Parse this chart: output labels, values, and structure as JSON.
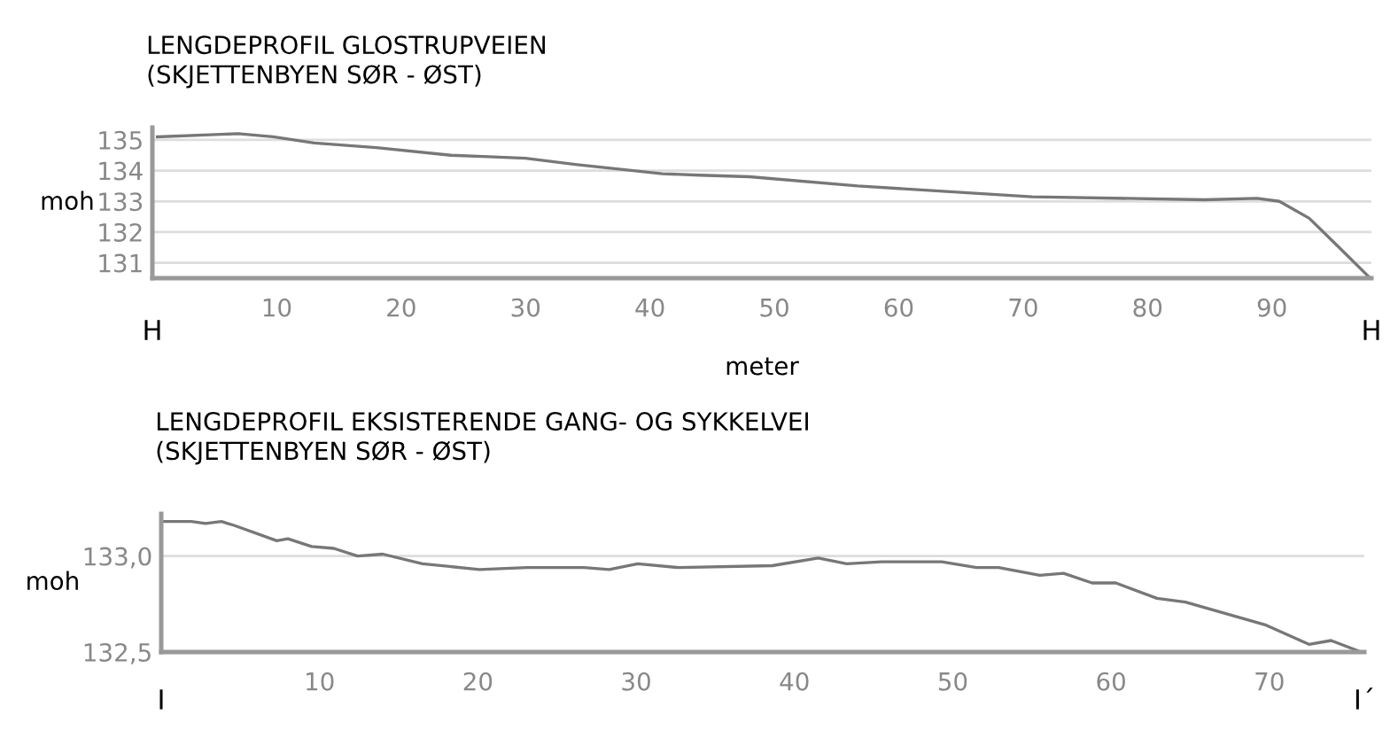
{
  "chart_data": [
    {
      "type": "line",
      "title": "LENGDEPROFIL GLOSTRUPVEIEN\n(SKJETTENBYEN SØR - ØST)",
      "xlabel": "meter",
      "ylabel": "moh",
      "annotations": [
        "H",
        "H"
      ],
      "xlim": [
        0,
        98
      ],
      "xticks": [
        10,
        20,
        30,
        40,
        50,
        60,
        70,
        80,
        90
      ],
      "ylim": [
        130.5,
        135.4
      ],
      "yticks": [
        131,
        132,
        133,
        134,
        135
      ],
      "grid": "y",
      "legend": false,
      "marker": "none",
      "line_style": "solid",
      "series": [
        {
          "color": "#777777",
          "x": [
            0.4,
            6.9,
            9.7,
            13,
            18,
            24,
            27,
            30,
            34,
            41,
            44,
            48,
            56.7,
            70.7,
            84.6,
            88.8,
            90.6,
            93,
            95.4,
            97.9
          ],
          "values": [
            135.1,
            135.2,
            135.1,
            134.9,
            134.75,
            134.5,
            134.45,
            134.4,
            134.2,
            133.9,
            133.85,
            133.8,
            133.5,
            133.15,
            133.05,
            133.1,
            133.0,
            132.45,
            131.5,
            130.5
          ]
        }
      ]
    },
    {
      "type": "line",
      "title": "LENGDEPROFIL EKSISTERENDE GANG- OG SYKKELVEI\n(SKJETTENBYEN SØR - ØST)",
      "ylabel": "moh",
      "annotations": [
        "I",
        "I´"
      ],
      "xlim": [
        0,
        76
      ],
      "xticks": [
        10,
        20,
        30,
        40,
        50,
        60,
        70
      ],
      "ylim": [
        132.5,
        133.22
      ],
      "yticks": [
        {
          "value": 132.5,
          "label": "132,5"
        },
        {
          "value": 133,
          "label": "133,0"
        }
      ],
      "grid": "y",
      "legend": false,
      "marker": "none",
      "line_style": "solid",
      "series": [
        {
          "color": "#777777",
          "x": [
            0.1,
            1.9,
            2.8,
            3.8,
            4.6,
            7.3,
            8,
            9.5,
            10.9,
            12.4,
            14,
            16.5,
            20.1,
            23.1,
            26.7,
            28.3,
            30.1,
            32.7,
            38.6,
            41.5,
            43.3,
            45.5,
            49.3,
            51.5,
            52.9,
            55.5,
            57,
            58.8,
            60.3,
            62.9,
            64.7,
            69.8,
            72.5,
            73.9,
            75.8
          ],
          "values": [
            133.18,
            133.18,
            133.17,
            133.18,
            133.16,
            133.08,
            133.09,
            133.05,
            133.04,
            133.0,
            133.01,
            132.96,
            132.93,
            132.94,
            132.94,
            132.93,
            132.96,
            132.94,
            132.95,
            132.99,
            132.96,
            132.97,
            132.97,
            132.94,
            132.94,
            132.9,
            132.91,
            132.86,
            132.86,
            132.78,
            132.76,
            132.64,
            132.54,
            132.56,
            132.5
          ]
        }
      ]
    }
  ]
}
